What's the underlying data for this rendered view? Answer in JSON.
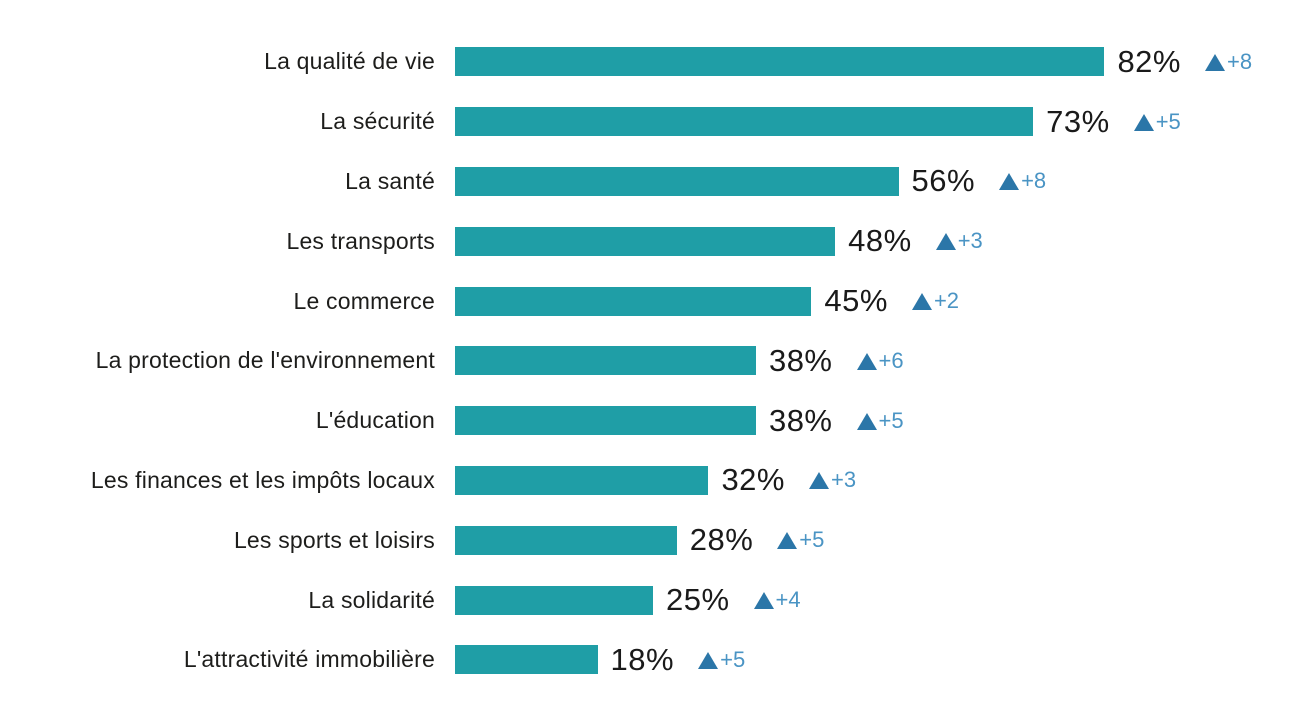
{
  "chart_data": {
    "type": "bar",
    "orientation": "horizontal",
    "title": "",
    "xlabel": "",
    "ylabel": "",
    "value_suffix": "%",
    "xlim": [
      0,
      100
    ],
    "grid": false,
    "legend": null,
    "categories": [
      "La qualité de vie",
      "La sécurité",
      "La santé",
      "Les transports",
      "Le commerce",
      "La protection de l'environnement",
      "L'éducation",
      "Les finances et les impôts locaux",
      "Les sports et loisirs",
      "La solidarité",
      "L'attractivité immobilière"
    ],
    "values": [
      82,
      73,
      56,
      48,
      45,
      38,
      38,
      32,
      28,
      25,
      18
    ],
    "deltas": [
      "+8",
      "+5",
      "+8",
      "+3",
      "+2",
      "+6",
      "+5",
      "+3",
      "+5",
      "+4",
      "+5"
    ],
    "delta_marker": "up-triangle",
    "colors": {
      "bar": "#1f9ea6",
      "delta_triangle": "#2b76a8",
      "delta_text": "#4a94c4",
      "label_text": "#1d1d1b",
      "value_text": "#1a1a1a",
      "background": "#ffffff"
    }
  }
}
